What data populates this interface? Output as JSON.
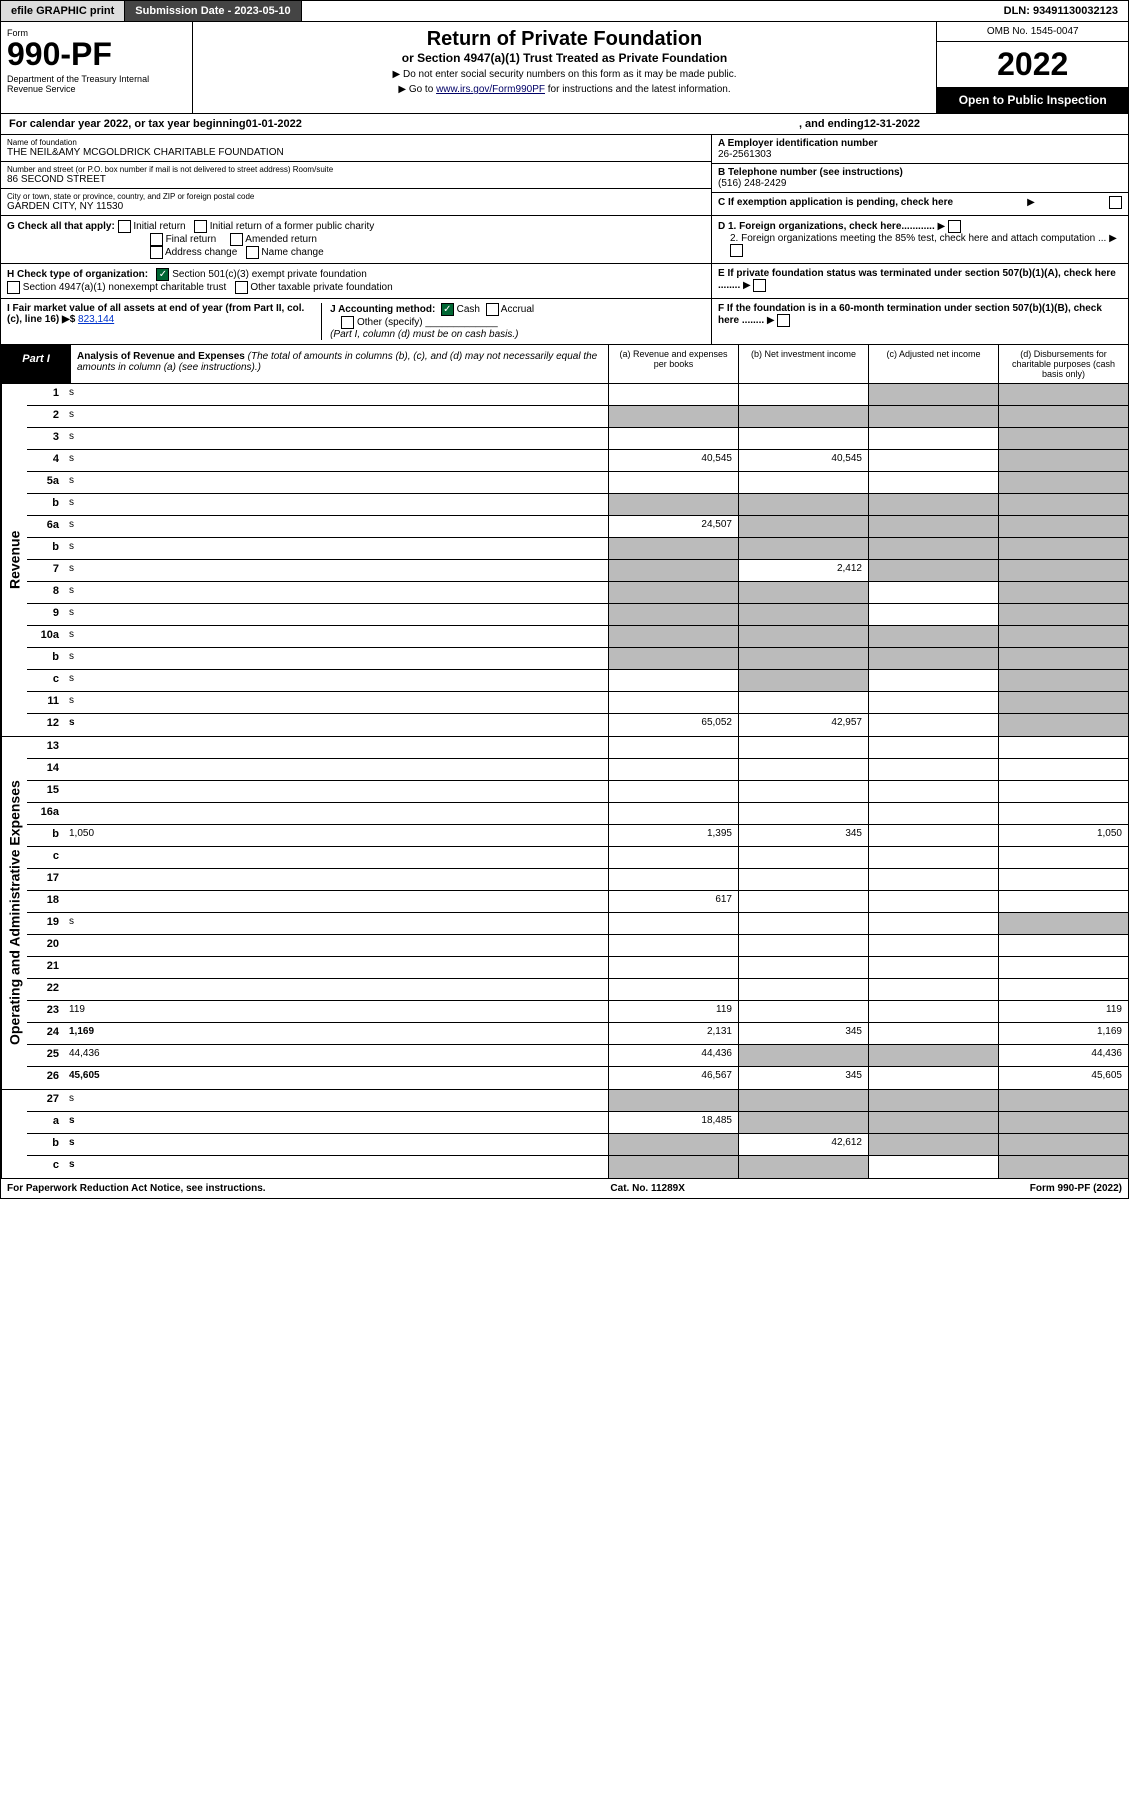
{
  "topbar": {
    "efile": "efile GRAPHIC print",
    "submission": "Submission Date - 2023-05-10",
    "dln": "DLN: 93491130032123"
  },
  "header": {
    "form_label": "Form",
    "form_num": "990-PF",
    "dept": "Department of the Treasury\nInternal Revenue Service",
    "title": "Return of Private Foundation",
    "subtitle": "or Section 4947(a)(1) Trust Treated as Private Foundation",
    "note1": "▶ Do not enter social security numbers on this form as it may be made public.",
    "note2_pre": "▶ Go to ",
    "note2_link": "www.irs.gov/Form990PF",
    "note2_post": " for instructions and the latest information.",
    "omb": "OMB No. 1545-0047",
    "year": "2022",
    "open": "Open to Public Inspection"
  },
  "calrow": {
    "pre": "For calendar year 2022, or tax year beginning ",
    "begin": "01-01-2022",
    "mid": ", and ending ",
    "end": "12-31-2022"
  },
  "info": {
    "name_lbl": "Name of foundation",
    "name": "THE NEIL&AMY MCGOLDRICK CHARITABLE FOUNDATION",
    "addr_lbl": "Number and street (or P.O. box number if mail is not delivered to street address)          Room/suite",
    "addr": "86 SECOND STREET",
    "city_lbl": "City or town, state or province, country, and ZIP or foreign postal code",
    "city": "GARDEN CITY, NY  11530",
    "a_lbl": "A Employer identification number",
    "a_val": "26-2561303",
    "b_lbl": "B Telephone number (see instructions)",
    "b_val": "(516) 248-2429",
    "c_lbl": "C If exemption application is pending, check here",
    "d1": "D 1. Foreign organizations, check here............",
    "d2": "2. Foreign organizations meeting the 85% test, check here and attach computation ...",
    "e": "E If private foundation status was terminated under section 507(b)(1)(A), check here ........",
    "f": "F If the foundation is in a 60-month termination under section 507(b)(1)(B), check here ........"
  },
  "checks": {
    "g_lbl": "G Check all that apply:",
    "g1": "Initial return",
    "g2": "Initial return of a former public charity",
    "g3": "Final return",
    "g4": "Amended return",
    "g5": "Address change",
    "g6": "Name change",
    "h_lbl": "H Check type of organization:",
    "h1": "Section 501(c)(3) exempt private foundation",
    "h2": "Section 4947(a)(1) nonexempt charitable trust",
    "h3": "Other taxable private foundation",
    "i_lbl": "I Fair market value of all assets at end of year (from Part II, col. (c), line 16) ▶$ ",
    "i_val": "823,144",
    "j_lbl": "J Accounting method:",
    "j1": "Cash",
    "j2": "Accrual",
    "j3": "Other (specify)",
    "j_note": "(Part I, column (d) must be on cash basis.)"
  },
  "part": {
    "label": "Part I",
    "title": "Analysis of Revenue and Expenses ",
    "note": "(The total of amounts in columns (b), (c), and (d) may not necessarily equal the amounts in column (a) (see instructions).)",
    "col_a": "(a)   Revenue and expenses per books",
    "col_b": "(b)   Net investment income",
    "col_c": "(c)   Adjusted net income",
    "col_d": "(d)   Disbursements for charitable purposes (cash basis only)"
  },
  "vlabels": {
    "rev": "Revenue",
    "opex": "Operating and Administrative Expenses"
  },
  "rev_rows": [
    {
      "n": "1",
      "d": "s",
      "a": "",
      "b": "",
      "c": "s"
    },
    {
      "n": "2",
      "d": "s",
      "a": "s",
      "b": "s",
      "c": "s"
    },
    {
      "n": "3",
      "d": "s",
      "a": "",
      "b": "",
      "c": ""
    },
    {
      "n": "4",
      "d": "s",
      "a": "40,545",
      "b": "40,545",
      "c": ""
    },
    {
      "n": "5a",
      "d": "s",
      "a": "",
      "b": "",
      "c": ""
    },
    {
      "n": "b",
      "d": "s",
      "a": "s",
      "b": "s",
      "c": "s"
    },
    {
      "n": "6a",
      "d": "s",
      "a": "24,507",
      "b": "s",
      "c": "s"
    },
    {
      "n": "b",
      "d": "s",
      "a": "s",
      "b": "s",
      "c": "s"
    },
    {
      "n": "7",
      "d": "s",
      "a": "s",
      "b": "2,412",
      "c": "s"
    },
    {
      "n": "8",
      "d": "s",
      "a": "s",
      "b": "s",
      "c": ""
    },
    {
      "n": "9",
      "d": "s",
      "a": "s",
      "b": "s",
      "c": ""
    },
    {
      "n": "10a",
      "d": "s",
      "a": "s",
      "b": "s",
      "c": "s"
    },
    {
      "n": "b",
      "d": "s",
      "a": "s",
      "b": "s",
      "c": "s"
    },
    {
      "n": "c",
      "d": "s",
      "a": "",
      "b": "s",
      "c": ""
    },
    {
      "n": "11",
      "d": "s",
      "a": "",
      "b": "",
      "c": ""
    },
    {
      "n": "12",
      "d": "s",
      "a": "65,052",
      "b": "42,957",
      "c": "",
      "bold": true
    }
  ],
  "ex_rows": [
    {
      "n": "13",
      "d": "",
      "a": "",
      "b": "",
      "c": ""
    },
    {
      "n": "14",
      "d": "",
      "a": "",
      "b": "",
      "c": ""
    },
    {
      "n": "15",
      "d": "",
      "a": "",
      "b": "",
      "c": ""
    },
    {
      "n": "16a",
      "d": "",
      "a": "",
      "b": "",
      "c": ""
    },
    {
      "n": "b",
      "d": "1,050",
      "a": "1,395",
      "b": "345",
      "c": ""
    },
    {
      "n": "c",
      "d": "",
      "a": "",
      "b": "",
      "c": ""
    },
    {
      "n": "17",
      "d": "",
      "a": "",
      "b": "",
      "c": ""
    },
    {
      "n": "18",
      "d": "",
      "a": "617",
      "b": "",
      "c": ""
    },
    {
      "n": "19",
      "d": "s",
      "a": "",
      "b": "",
      "c": ""
    },
    {
      "n": "20",
      "d": "",
      "a": "",
      "b": "",
      "c": ""
    },
    {
      "n": "21",
      "d": "",
      "a": "",
      "b": "",
      "c": ""
    },
    {
      "n": "22",
      "d": "",
      "a": "",
      "b": "",
      "c": ""
    },
    {
      "n": "23",
      "d": "119",
      "a": "119",
      "b": "",
      "c": ""
    },
    {
      "n": "24",
      "d": "1,169",
      "a": "2,131",
      "b": "345",
      "c": "",
      "bold": true
    },
    {
      "n": "25",
      "d": "44,436",
      "a": "44,436",
      "b": "s",
      "c": "s"
    },
    {
      "n": "26",
      "d": "45,605",
      "a": "46,567",
      "b": "345",
      "c": "",
      "bold": true
    }
  ],
  "net_rows": [
    {
      "n": "27",
      "d": "s",
      "a": "s",
      "b": "s",
      "c": "s"
    },
    {
      "n": "a",
      "d": "s",
      "a": "18,485",
      "b": "s",
      "c": "s",
      "bold": true
    },
    {
      "n": "b",
      "d": "s",
      "a": "s",
      "b": "42,612",
      "c": "s",
      "bold": true
    },
    {
      "n": "c",
      "d": "s",
      "a": "s",
      "b": "s",
      "c": "",
      "bold": true
    }
  ],
  "footer": {
    "left": "For Paperwork Reduction Act Notice, see instructions.",
    "mid": "Cat. No. 11289X",
    "right": "Form 990-PF (2022)"
  }
}
